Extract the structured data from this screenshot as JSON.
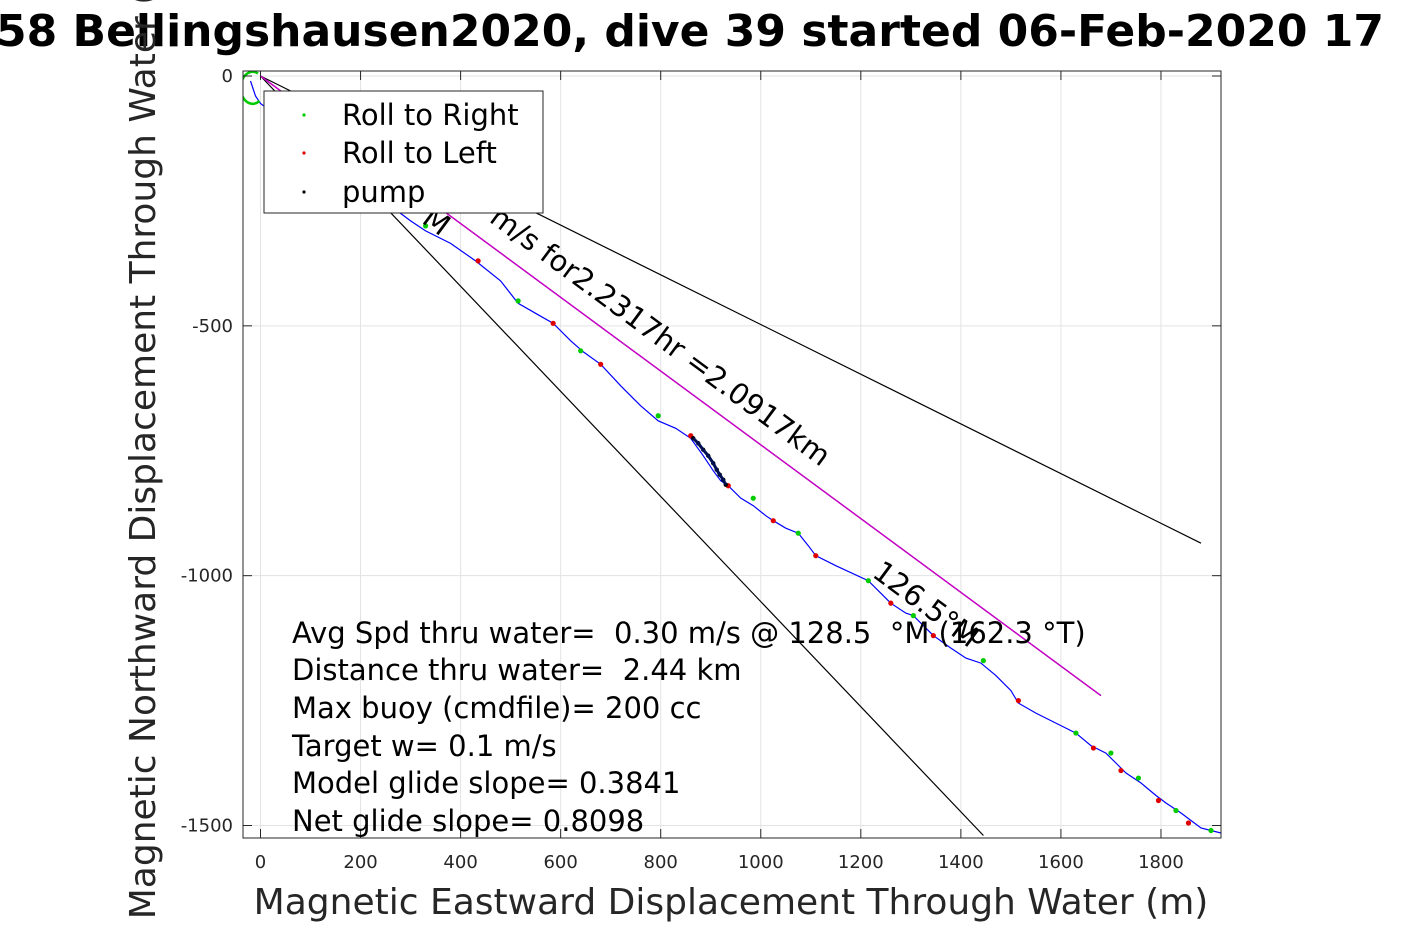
{
  "chart_data": {
    "type": "line",
    "title": "58 Bellingshausen2020, dive 39 started 06-Feb-2020 17",
    "xlabel": "Magnetic Eastward Displacement Through Water (m)",
    "ylabel": "Magnetic Northward Displacement Through Water (",
    "xlim": [
      -35,
      1920
    ],
    "ylim": [
      -1525,
      10
    ],
    "xticks": [
      0,
      200,
      400,
      600,
      800,
      1000,
      1200,
      1400,
      1600,
      1800
    ],
    "yticks": [
      0,
      -500,
      -1000,
      -1500
    ],
    "xtick_labels": [
      "0",
      "200",
      "400",
      "600",
      "800",
      "1000",
      "1200",
      "1400",
      "1600",
      "1800"
    ],
    "ytick_labels": [
      "0",
      "-500",
      "-1000",
      "-1500"
    ],
    "grid": true,
    "legend": {
      "placement": "top-left",
      "entries": [
        {
          "label": "Roll to Right",
          "color": "#00cc00"
        },
        {
          "label": "Roll to Left",
          "color": "#e00000"
        },
        {
          "label": "pump",
          "color": "#000000"
        }
      ]
    },
    "series": [
      {
        "kind": "track",
        "color": "#0000ff",
        "x": [
          -20,
          -10,
          0,
          20,
          60,
          120,
          200,
          260,
          300,
          330,
          380,
          430,
          480,
          515,
          550,
          585,
          620,
          645,
          680,
          720,
          760,
          795,
          830,
          860,
          885,
          905,
          920,
          935,
          960,
          985,
          1010,
          1025,
          1050,
          1075,
          1095,
          1110,
          1150,
          1215,
          1240,
          1260,
          1290,
          1305,
          1330,
          1345,
          1380,
          1410,
          1440,
          1470,
          1500,
          1515,
          1550,
          1600,
          1630,
          1660,
          1690,
          1710,
          1730,
          1760,
          1790,
          1810,
          1840,
          1860,
          1880,
          1900,
          1920
        ],
        "y": [
          -10,
          -40,
          -55,
          -70,
          -95,
          -140,
          -200,
          -260,
          -290,
          -310,
          -335,
          -370,
          -410,
          -455,
          -475,
          -495,
          -530,
          -552,
          -577,
          -620,
          -660,
          -690,
          -705,
          -725,
          -760,
          -790,
          -810,
          -820,
          -845,
          -860,
          -880,
          -890,
          -905,
          -915,
          -940,
          -960,
          -980,
          -1010,
          -1035,
          -1055,
          -1075,
          -1080,
          -1105,
          -1120,
          -1145,
          -1165,
          -1175,
          -1200,
          -1230,
          -1255,
          -1275,
          -1300,
          -1315,
          -1340,
          -1355,
          -1375,
          -1395,
          -1415,
          -1440,
          -1455,
          -1475,
          -1490,
          -1505,
          -1510,
          -1515
        ]
      },
      {
        "kind": "avg-current-line",
        "color": "#cc00cc",
        "x": [
          0,
          1680
        ],
        "y": [
          0,
          -1240
        ]
      }
    ],
    "guide_lines": [
      {
        "color": "#000000",
        "x": [
          0,
          1880
        ],
        "y": [
          0,
          -935
        ]
      },
      {
        "color": "#000000",
        "x": [
          0,
          1445
        ],
        "y": [
          0,
          -1520
        ]
      },
      {
        "color": "#000000",
        "x": [
          0,
          1680
        ],
        "y": [
          0,
          -1240
        ]
      }
    ],
    "roll_right_points": {
      "x": [
        330,
        515,
        640,
        795,
        985,
        1075,
        1215,
        1305,
        1445,
        1630,
        1700,
        1755,
        1830,
        1900
      ],
      "y": [
        -300,
        -450,
        -550,
        -680,
        -845,
        -915,
        -1010,
        -1080,
        -1170,
        -1315,
        -1355,
        -1405,
        -1470,
        -1510
      ]
    },
    "roll_left_points": {
      "x": [
        435,
        585,
        680,
        860,
        935,
        1025,
        1110,
        1260,
        1345,
        1515,
        1665,
        1720,
        1795,
        1855
      ],
      "y": [
        -370,
        -495,
        -577,
        -720,
        -820,
        -890,
        -960,
        -1055,
        -1120,
        -1250,
        -1345,
        -1390,
        -1450,
        -1495
      ]
    },
    "pump_points": {
      "x": [
        865,
        875,
        885,
        895,
        905,
        912,
        918,
        925,
        930
      ],
      "y": [
        -725,
        -735,
        -748,
        -760,
        -775,
        -788,
        -798,
        -808,
        -818
      ]
    },
    "annotations": [
      {
        "text": "m/s for2.2317hr =2.0917km",
        "x": 455,
        "y": -290,
        "rotation": 36.5
      },
      {
        "text": "M",
        "x": 320,
        "y": -292,
        "rotation": 36.5
      },
      {
        "text": "126.5°M",
        "x": 1220,
        "y": -1000,
        "rotation": 36.5
      }
    ],
    "info_text": [
      "Avg Spd thru water=  0.30 m/s @ 128.5  °M (162.3 °T)",
      "Distance thru water=  2.44 km",
      "Max buoy (cmdfile)= 200 cc",
      "Target w= 0.1 m/s",
      "Model glide slope= 0.3841",
      "Net glide slope= 0.8098"
    ]
  }
}
